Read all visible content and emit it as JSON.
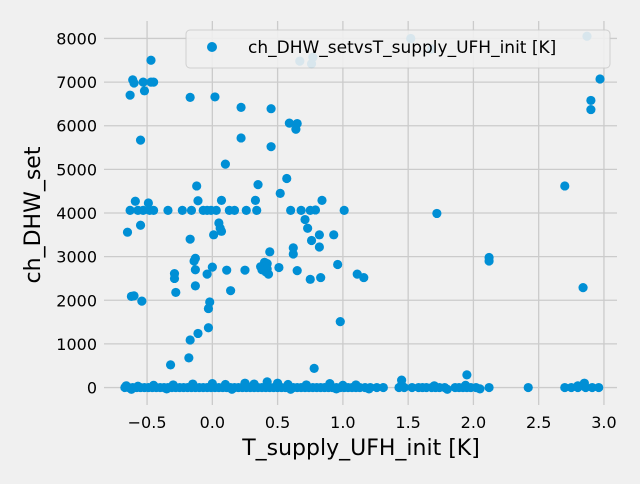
{
  "chart_data": {
    "type": "scatter",
    "title": "",
    "xlabel": "T_supply_UFH_init [K]",
    "ylabel": "ch_DHW_set",
    "xlim": [
      -0.83,
      3.1
    ],
    "ylim": [
      -400,
      8400
    ],
    "xticks": [
      -0.5,
      0.0,
      0.5,
      1.0,
      1.5,
      2.0,
      2.5,
      3.0
    ],
    "xtick_labels": [
      "−0.5",
      "0.0",
      "0.5",
      "1.0",
      "1.5",
      "2.0",
      "2.5",
      "3.0"
    ],
    "yticks": [
      0,
      1000,
      2000,
      3000,
      4000,
      5000,
      6000,
      7000,
      8000
    ],
    "ytick_labels": [
      "0",
      "1000",
      "2000",
      "3000",
      "4000",
      "5000",
      "6000",
      "7000",
      "8000"
    ],
    "grid": true,
    "legend": {
      "position": "top-right",
      "entries": [
        "ch_DHW_setvsT_supply_UFH_init [K]"
      ]
    },
    "colors": {
      "series": "#008fd5",
      "background": "#f0f0f0",
      "grid": "#cbcbcb"
    },
    "series": [
      {
        "name": "ch_DHW_setvsT_supply_UFH_init [K]",
        "points": [
          [
            -0.47,
            7500
          ],
          [
            -0.61,
            7050
          ],
          [
            -0.6,
            6980
          ],
          [
            -0.53,
            7000
          ],
          [
            -0.47,
            7000
          ],
          [
            -0.45,
            7000
          ],
          [
            -0.52,
            6800
          ],
          [
            -0.63,
            6700
          ],
          [
            -0.17,
            6650
          ],
          [
            0.02,
            6660
          ],
          [
            0.22,
            6420
          ],
          [
            0.45,
            6390
          ],
          [
            0.59,
            6060
          ],
          [
            0.65,
            6050
          ],
          [
            0.64,
            5920
          ],
          [
            0.22,
            5720
          ],
          [
            -0.55,
            5670
          ],
          [
            0.45,
            5520
          ],
          [
            0.1,
            5120
          ],
          [
            0.57,
            4790
          ],
          [
            0.35,
            4650
          ],
          [
            -0.12,
            4620
          ],
          [
            0.52,
            4450
          ],
          [
            -0.59,
            4270
          ],
          [
            -0.49,
            4230
          ],
          [
            -0.11,
            4280
          ],
          [
            0.07,
            4290
          ],
          [
            0.33,
            4290
          ],
          [
            0.79,
            4070
          ],
          [
            0.84,
            4290
          ],
          [
            -0.63,
            4060
          ],
          [
            -0.57,
            4060
          ],
          [
            -0.53,
            4060
          ],
          [
            -0.48,
            4060
          ],
          [
            -0.45,
            4060
          ],
          [
            -0.34,
            4060
          ],
          [
            -0.23,
            4060
          ],
          [
            -0.16,
            4060
          ],
          [
            -0.07,
            4060
          ],
          [
            -0.04,
            4060
          ],
          [
            -0.01,
            4060
          ],
          [
            0.03,
            4060
          ],
          [
            0.13,
            4060
          ],
          [
            0.17,
            4060
          ],
          [
            0.26,
            4060
          ],
          [
            0.34,
            4060
          ],
          [
            0.6,
            4060
          ],
          [
            0.68,
            4060
          ],
          [
            0.75,
            4060
          ],
          [
            1.01,
            4060
          ],
          [
            1.72,
            3990
          ],
          [
            -0.55,
            3720
          ],
          [
            0.05,
            3770
          ],
          [
            0.06,
            3650
          ],
          [
            0.07,
            3580
          ],
          [
            0.01,
            3500
          ],
          [
            -0.65,
            3560
          ],
          [
            0.71,
            3850
          ],
          [
            0.73,
            3650
          ],
          [
            0.82,
            3500
          ],
          [
            0.93,
            3500
          ],
          [
            -0.17,
            3400
          ],
          [
            0.76,
            3370
          ],
          [
            0.62,
            3200
          ],
          [
            0.82,
            3220
          ],
          [
            0.44,
            3110
          ],
          [
            0.62,
            3060
          ],
          [
            -0.13,
            2960
          ],
          [
            -0.14,
            2900
          ],
          [
            0.4,
            2870
          ],
          [
            0.42,
            2840
          ],
          [
            0.96,
            2820
          ],
          [
            0.37,
            2770
          ],
          [
            0.51,
            2750
          ],
          [
            0.0,
            2760
          ],
          [
            0.38,
            2700
          ],
          [
            0.42,
            2720
          ],
          [
            0.25,
            2690
          ],
          [
            0.11,
            2690
          ],
          [
            0.41,
            2650
          ],
          [
            0.43,
            2600
          ],
          [
            -0.29,
            2610
          ],
          [
            -0.04,
            2600
          ],
          [
            -0.13,
            2700
          ],
          [
            0.65,
            2680
          ],
          [
            -0.29,
            2500
          ],
          [
            0.75,
            2480
          ],
          [
            0.83,
            2520
          ],
          [
            1.11,
            2600
          ],
          [
            1.16,
            2520
          ],
          [
            -0.28,
            2180
          ],
          [
            0.14,
            2220
          ],
          [
            -0.13,
            2330
          ],
          [
            -0.6,
            2100
          ],
          [
            -0.62,
            2090
          ],
          [
            -0.54,
            1980
          ],
          [
            -0.02,
            1960
          ],
          [
            -0.03,
            1810
          ],
          [
            0.98,
            1510
          ],
          [
            -0.03,
            1370
          ],
          [
            -0.11,
            1240
          ],
          [
            -0.17,
            1090
          ],
          [
            -0.18,
            680
          ],
          [
            -0.32,
            520
          ],
          [
            0.78,
            440
          ],
          [
            2.12,
            2980
          ],
          [
            2.12,
            2900
          ],
          [
            2.7,
            4620
          ],
          [
            2.84,
            2290
          ],
          [
            2.9,
            6580
          ],
          [
            2.9,
            6370
          ],
          [
            2.97,
            7070
          ],
          [
            2.87,
            8050
          ],
          [
            1.52,
            8000
          ],
          [
            0.67,
            7480
          ],
          [
            0.77,
            7570
          ],
          [
            0.76,
            7420
          ],
          [
            1.68,
            7760
          ],
          [
            1.95,
            290
          ],
          [
            1.45,
            170
          ],
          [
            0.42,
            130
          ],
          [
            2.85,
            100
          ],
          [
            0.9,
            90
          ],
          [
            -0.67,
            0
          ],
          [
            -0.64,
            0
          ],
          [
            -0.61,
            0
          ],
          [
            -0.58,
            0
          ],
          [
            -0.55,
            0
          ],
          [
            -0.52,
            0
          ],
          [
            -0.49,
            0
          ],
          [
            -0.46,
            0
          ],
          [
            -0.43,
            0
          ],
          [
            -0.4,
            0
          ],
          [
            -0.37,
            0
          ],
          [
            -0.34,
            0
          ],
          [
            -0.31,
            0
          ],
          [
            -0.28,
            0
          ],
          [
            -0.25,
            0
          ],
          [
            -0.22,
            0
          ],
          [
            -0.19,
            0
          ],
          [
            -0.16,
            0
          ],
          [
            -0.13,
            0
          ],
          [
            -0.1,
            0
          ],
          [
            -0.07,
            0
          ],
          [
            -0.04,
            0
          ],
          [
            -0.01,
            0
          ],
          [
            0.02,
            0
          ],
          [
            0.05,
            0
          ],
          [
            0.08,
            0
          ],
          [
            0.11,
            0
          ],
          [
            0.14,
            0
          ],
          [
            0.17,
            0
          ],
          [
            0.2,
            0
          ],
          [
            0.23,
            0
          ],
          [
            0.26,
            0
          ],
          [
            0.29,
            0
          ],
          [
            0.32,
            0
          ],
          [
            0.35,
            0
          ],
          [
            0.38,
            0
          ],
          [
            0.41,
            0
          ],
          [
            0.44,
            0
          ],
          [
            0.47,
            0
          ],
          [
            0.5,
            0
          ],
          [
            0.53,
            0
          ],
          [
            0.56,
            0
          ],
          [
            0.59,
            0
          ],
          [
            0.62,
            0
          ],
          [
            0.65,
            0
          ],
          [
            0.68,
            0
          ],
          [
            0.71,
            0
          ],
          [
            0.74,
            0
          ],
          [
            0.77,
            0
          ],
          [
            0.8,
            0
          ],
          [
            0.83,
            0
          ],
          [
            0.86,
            0
          ],
          [
            0.89,
            0
          ],
          [
            0.92,
            0
          ],
          [
            0.95,
            0
          ],
          [
            0.98,
            0
          ],
          [
            1.01,
            0
          ],
          [
            1.04,
            0
          ],
          [
            1.07,
            0
          ],
          [
            1.1,
            0
          ],
          [
            1.13,
            0
          ],
          [
            1.17,
            0
          ],
          [
            1.21,
            0
          ],
          [
            1.26,
            0
          ],
          [
            1.31,
            0
          ],
          [
            1.43,
            0
          ],
          [
            1.47,
            0
          ],
          [
            1.53,
            0
          ],
          [
            1.58,
            0
          ],
          [
            1.61,
            0
          ],
          [
            1.64,
            0
          ],
          [
            1.68,
            0
          ],
          [
            1.71,
            0
          ],
          [
            1.74,
            0
          ],
          [
            1.78,
            0
          ],
          [
            1.86,
            0
          ],
          [
            1.89,
            0
          ],
          [
            1.92,
            0
          ],
          [
            1.95,
            0
          ],
          [
            1.98,
            0
          ],
          [
            2.02,
            0
          ],
          [
            2.12,
            0
          ],
          [
            2.42,
            0
          ],
          [
            2.7,
            0
          ],
          [
            2.75,
            0
          ],
          [
            2.8,
            0
          ],
          [
            2.86,
            0
          ],
          [
            2.91,
            0
          ],
          [
            2.96,
            0
          ],
          [
            -0.66,
            40
          ],
          [
            -0.57,
            30
          ],
          [
            -0.45,
            50
          ],
          [
            -0.3,
            60
          ],
          [
            -0.15,
            80
          ],
          [
            0.0,
            90
          ],
          [
            0.1,
            70
          ],
          [
            0.25,
            100
          ],
          [
            0.32,
            80
          ],
          [
            0.5,
            100
          ],
          [
            0.58,
            70
          ],
          [
            0.72,
            60
          ],
          [
            1.0,
            50
          ],
          [
            1.1,
            60
          ],
          [
            1.45,
            60
          ],
          [
            1.7,
            40
          ],
          [
            1.94,
            50
          ],
          [
            2.8,
            40
          ],
          [
            -0.62,
            -40
          ],
          [
            -0.35,
            -30
          ],
          [
            0.15,
            -40
          ],
          [
            0.6,
            -40
          ],
          [
            0.95,
            -30
          ],
          [
            1.2,
            -30
          ],
          [
            1.8,
            -40
          ],
          [
            2.05,
            -30
          ]
        ]
      }
    ]
  }
}
